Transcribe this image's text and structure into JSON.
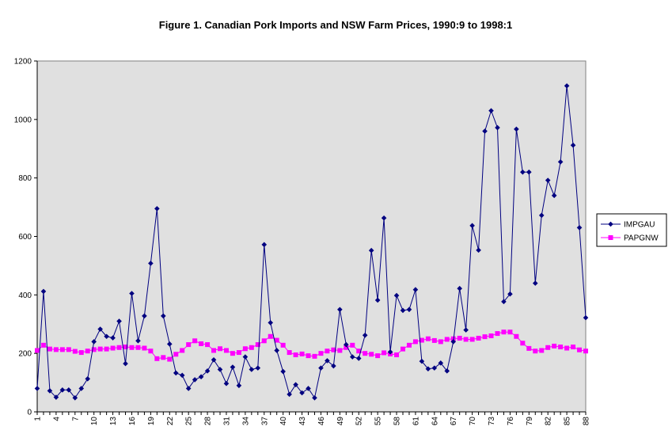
{
  "chart_data": {
    "type": "line",
    "title": "Figure 1. Canadian Pork Imports and NSW Farm Prices, 1990:9 to 1998:1",
    "xlabel": "",
    "ylabel": "",
    "ylim": [
      0,
      1200
    ],
    "yticks": [
      0,
      200,
      400,
      600,
      800,
      1000,
      1200
    ],
    "xtick_labels": [
      "1",
      "4",
      "7",
      "10",
      "13",
      "16",
      "19",
      "22",
      "25",
      "28",
      "31",
      "34",
      "37",
      "40",
      "43",
      "46",
      "49",
      "52",
      "55",
      "58",
      "61",
      "64",
      "67",
      "70",
      "73",
      "76",
      "79",
      "82",
      "85",
      "88"
    ],
    "x": [
      1,
      2,
      3,
      4,
      5,
      6,
      7,
      8,
      9,
      10,
      11,
      12,
      13,
      14,
      15,
      16,
      17,
      18,
      19,
      20,
      21,
      22,
      23,
      24,
      25,
      26,
      27,
      28,
      29,
      30,
      31,
      32,
      33,
      34,
      35,
      36,
      37,
      38,
      39,
      40,
      41,
      42,
      43,
      44,
      45,
      46,
      47,
      48,
      49,
      50,
      51,
      52,
      53,
      54,
      55,
      56,
      57,
      58,
      59,
      60,
      61,
      62,
      63,
      64,
      65,
      66,
      67,
      68,
      69,
      70,
      71,
      72,
      73,
      74,
      75,
      76,
      77,
      78,
      79,
      80,
      81,
      82,
      83,
      84,
      85,
      86,
      87,
      88
    ],
    "grid": false,
    "plot_background": "#e0e0e0",
    "legend_position": "right",
    "series": [
      {
        "name": "IMPGAU",
        "color": "#000080",
        "marker": "diamond",
        "values": [
          80,
          412,
          72,
          50,
          75,
          75,
          48,
          80,
          113,
          240,
          283,
          258,
          253,
          310,
          165,
          405,
          243,
          328,
          508,
          695,
          328,
          232,
          133,
          125,
          80,
          110,
          120,
          140,
          178,
          145,
          97,
          153,
          90,
          188,
          145,
          150,
          572,
          305,
          210,
          138,
          60,
          93,
          65,
          80,
          48,
          150,
          175,
          157,
          350,
          230,
          188,
          183,
          262,
          552,
          382,
          663,
          205,
          398,
          347,
          350,
          418,
          173,
          147,
          150,
          167,
          140,
          240,
          422,
          280,
          637,
          553,
          960,
          1030,
          972,
          377,
          403,
          967,
          820,
          820,
          440,
          672,
          792,
          740,
          855,
          1115,
          912,
          630,
          322
        ]
      },
      {
        "name": "PAPGNW",
        "color": "#ff00ff",
        "marker": "square",
        "values": [
          210,
          228,
          215,
          213,
          213,
          213,
          207,
          203,
          208,
          213,
          215,
          215,
          218,
          220,
          222,
          220,
          220,
          218,
          208,
          182,
          186,
          180,
          197,
          210,
          230,
          243,
          233,
          230,
          210,
          216,
          210,
          200,
          203,
          216,
          220,
          230,
          243,
          258,
          245,
          228,
          203,
          195,
          198,
          192,
          190,
          200,
          208,
          212,
          210,
          220,
          228,
          208,
          200,
          197,
          192,
          202,
          198,
          195,
          215,
          228,
          240,
          245,
          250,
          244,
          240,
          248,
          250,
          252,
          248,
          248,
          252,
          257,
          260,
          268,
          273,
          273,
          258,
          235,
          217,
          208,
          210,
          220,
          225,
          222,
          218,
          222,
          212,
          208
        ]
      }
    ]
  }
}
